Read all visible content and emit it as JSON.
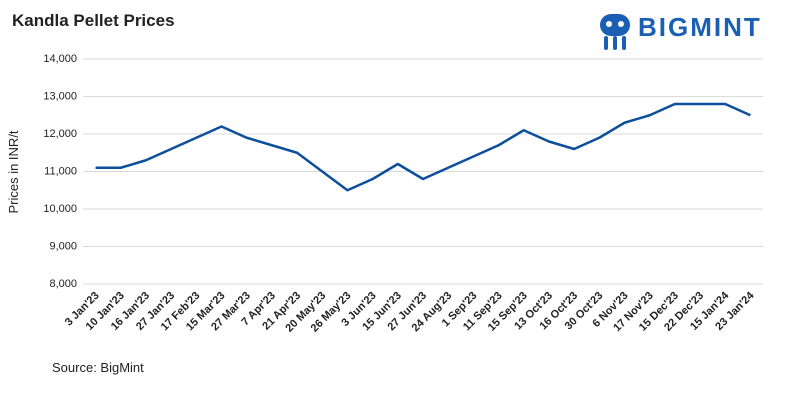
{
  "chart_data": {
    "type": "line",
    "title": "Kandla Pellet Prices",
    "y_label": "Prices in INR/t",
    "categories": [
      "3 Jan'23",
      "10 Jan'23",
      "16 Jan'23",
      "27 Jan'23",
      "17 Feb'23",
      "15 Mar'23",
      "27 Mar'23",
      "7 Apr'23",
      "21 Apr'23",
      "20 May'23",
      "26 May'23",
      "3 Jun'23",
      "15 Jun'23",
      "27 Jun'23",
      "24 Aug'23",
      "1 Sep'23",
      "11 Sep'23",
      "15 Sep'23",
      "13 Oct'23",
      "16 Oct'23",
      "30 Oct'23",
      "6 Nov'23",
      "17 Nov'23",
      "15 Dec'23",
      "22 Dec'23",
      "15 Jan'24",
      "23 Jan'24"
    ],
    "values": [
      11100,
      11100,
      11300,
      11600,
      11900,
      12200,
      11900,
      11700,
      11500,
      11000,
      10500,
      10800,
      11200,
      10800,
      11100,
      11400,
      11700,
      12100,
      11800,
      11600,
      11900,
      12300,
      12500,
      12800,
      12800,
      12800,
      12500
    ],
    "color": "#0d4f9c",
    "ylim": [
      8000,
      14000
    ],
    "yticks": [
      {
        "value": 8000,
        "label": "8,000"
      },
      {
        "value": 9000,
        "label": "9,000"
      },
      {
        "value": 10000,
        "label": "10,000"
      },
      {
        "value": 11000,
        "label": "11,000"
      },
      {
        "value": 12000,
        "label": "12,000"
      },
      {
        "value": 13000,
        "label": "13,000"
      },
      {
        "value": 14000,
        "label": "14,000"
      }
    ],
    "grid": true,
    "source": "Source: BigMint"
  },
  "logo": "BIGMINT"
}
